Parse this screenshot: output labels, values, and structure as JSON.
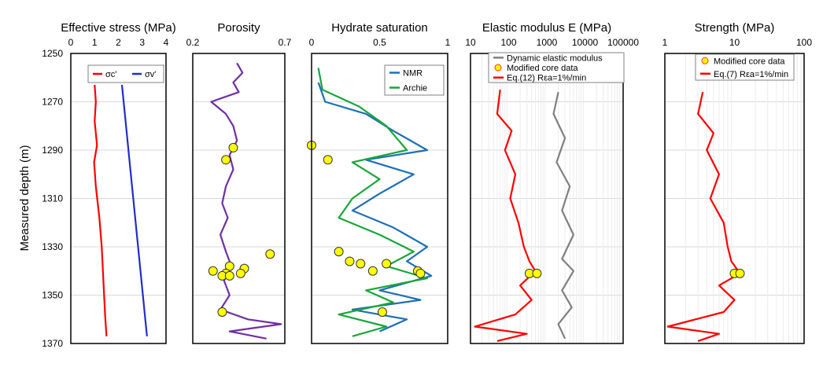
{
  "figure": {
    "ylabel": "Measured depth (m)",
    "y_ticks": [
      1250,
      1270,
      1290,
      1310,
      1330,
      1350,
      1370
    ]
  },
  "chart_data": [
    {
      "type": "line",
      "title": "Effective stress (MPa)",
      "x_scale": "linear",
      "xlim": [
        0,
        4
      ],
      "x_ticks": [
        "0",
        "1",
        "2",
        "3",
        "4"
      ],
      "ylim": [
        1250,
        1370
      ],
      "y_inverted": true,
      "legend": "top-right",
      "series": [
        {
          "name": "σc'",
          "color": "#ff0000",
          "points": [
            [
              1.0,
              1263
            ],
            [
              1.05,
              1270
            ],
            [
              1.0,
              1278
            ],
            [
              1.1,
              1288
            ],
            [
              0.98,
              1295
            ],
            [
              1.05,
              1305
            ],
            [
              1.2,
              1318
            ],
            [
              1.3,
              1330
            ],
            [
              1.35,
              1340
            ],
            [
              1.4,
              1350
            ],
            [
              1.45,
              1360
            ],
            [
              1.5,
              1367
            ]
          ]
        },
        {
          "name": "σv'",
          "color": "#1f2ecc",
          "points": [
            [
              2.15,
              1263
            ],
            [
              3.2,
              1367
            ]
          ]
        }
      ]
    },
    {
      "type": "line",
      "title": "Porosity",
      "x_scale": "linear",
      "xlim": [
        0.2,
        0.7
      ],
      "x_ticks": [
        "0.2",
        "0.7"
      ],
      "ylim": [
        1250,
        1370
      ],
      "y_inverted": true,
      "series": [
        {
          "name": "",
          "color": "#7030a0",
          "points": [
            [
              0.44,
              1254
            ],
            [
              0.47,
              1258
            ],
            [
              0.42,
              1262
            ],
            [
              0.45,
              1266
            ],
            [
              0.3,
              1270
            ],
            [
              0.38,
              1275
            ],
            [
              0.42,
              1280
            ],
            [
              0.44,
              1286
            ],
            [
              0.4,
              1292
            ],
            [
              0.42,
              1298
            ],
            [
              0.38,
              1305
            ],
            [
              0.36,
              1312
            ],
            [
              0.39,
              1318
            ],
            [
              0.35,
              1325
            ],
            [
              0.38,
              1332
            ],
            [
              0.41,
              1338
            ],
            [
              0.37,
              1344
            ],
            [
              0.4,
              1350
            ],
            [
              0.35,
              1356
            ],
            [
              0.5,
              1360
            ],
            [
              0.68,
              1362
            ],
            [
              0.4,
              1365
            ],
            [
              0.6,
              1368
            ]
          ]
        }
      ],
      "markers": {
        "name": "",
        "color": "#ffff00",
        "points": [
          [
            0.42,
            1289
          ],
          [
            0.38,
            1294
          ],
          [
            0.62,
            1333
          ],
          [
            0.4,
            1338
          ],
          [
            0.48,
            1339
          ],
          [
            0.31,
            1340
          ],
          [
            0.38,
            1341
          ],
          [
            0.46,
            1341
          ],
          [
            0.36,
            1342
          ],
          [
            0.4,
            1342
          ],
          [
            0.36,
            1357
          ]
        ]
      }
    },
    {
      "type": "line",
      "title": "Hydrate saturation",
      "x_scale": "linear",
      "xlim": [
        0,
        1
      ],
      "x_ticks": [
        "0",
        "0.5",
        "1"
      ],
      "ylim": [
        1250,
        1370
      ],
      "y_inverted": true,
      "legend": "top-right",
      "series": [
        {
          "name": "NMR",
          "color": "#1f6fb5",
          "points": [
            [
              0.05,
              1262
            ],
            [
              0.1,
              1270
            ],
            [
              0.4,
              1275
            ],
            [
              0.6,
              1282
            ],
            [
              0.85,
              1290
            ],
            [
              0.4,
              1294
            ],
            [
              0.75,
              1300
            ],
            [
              0.5,
              1308
            ],
            [
              0.3,
              1315
            ],
            [
              0.6,
              1322
            ],
            [
              0.85,
              1330
            ],
            [
              0.7,
              1336
            ],
            [
              0.88,
              1342
            ],
            [
              0.5,
              1348
            ],
            [
              0.8,
              1352
            ],
            [
              0.3,
              1356
            ],
            [
              0.7,
              1360
            ],
            [
              0.5,
              1365
            ]
          ]
        },
        {
          "name": "Archie",
          "color": "#19a63a",
          "points": [
            [
              0.05,
              1256
            ],
            [
              0.08,
              1265
            ],
            [
              0.35,
              1272
            ],
            [
              0.55,
              1280
            ],
            [
              0.7,
              1290
            ],
            [
              0.3,
              1295
            ],
            [
              0.5,
              1302
            ],
            [
              0.3,
              1310
            ],
            [
              0.2,
              1318
            ],
            [
              0.5,
              1325
            ],
            [
              0.75,
              1332
            ],
            [
              0.55,
              1338
            ],
            [
              0.85,
              1343
            ],
            [
              0.4,
              1348
            ],
            [
              0.6,
              1353
            ],
            [
              0.2,
              1358
            ],
            [
              0.55,
              1363
            ],
            [
              0.3,
              1367
            ]
          ]
        }
      ],
      "markers": {
        "name": "",
        "color": "#ffff00",
        "points": [
          [
            0.0,
            1288
          ],
          [
            0.12,
            1294
          ],
          [
            0.2,
            1332
          ],
          [
            0.28,
            1336
          ],
          [
            0.36,
            1337
          ],
          [
            0.55,
            1337
          ],
          [
            0.45,
            1340
          ],
          [
            0.78,
            1340
          ],
          [
            0.8,
            1341
          ],
          [
            0.52,
            1357
          ]
        ]
      }
    },
    {
      "type": "line",
      "title": "Elastic modulus E (MPa)",
      "x_scale": "log",
      "xlim": [
        10,
        100000
      ],
      "x_ticks": [
        "10",
        "100",
        "1000",
        "10000",
        "100000"
      ],
      "ylim": [
        1250,
        1370
      ],
      "y_inverted": true,
      "legend": "top",
      "series": [
        {
          "name": "Dynamic elastic modulus",
          "color": "#808080",
          "points": [
            [
              2000,
              1266
            ],
            [
              1500,
              1275
            ],
            [
              3000,
              1285
            ],
            [
              1800,
              1295
            ],
            [
              4000,
              1305
            ],
            [
              2500,
              1315
            ],
            [
              5000,
              1325
            ],
            [
              2500,
              1335
            ],
            [
              5000,
              1340
            ],
            [
              2500,
              1348
            ],
            [
              4500,
              1355
            ],
            [
              2000,
              1362
            ],
            [
              3000,
              1368
            ]
          ]
        },
        {
          "name": "Eq.(12) Rεa=1%/min",
          "color": "#ff0000",
          "points": [
            [
              60,
              1265
            ],
            [
              50,
              1275
            ],
            [
              120,
              1282
            ],
            [
              80,
              1290
            ],
            [
              150,
              1300
            ],
            [
              110,
              1310
            ],
            [
              180,
              1320
            ],
            [
              250,
              1330
            ],
            [
              350,
              1336
            ],
            [
              500,
              1340
            ],
            [
              200,
              1346
            ],
            [
              400,
              1352
            ],
            [
              150,
              1358
            ],
            [
              13,
              1363
            ],
            [
              300,
              1366
            ],
            [
              50,
              1369
            ]
          ]
        }
      ],
      "markers": {
        "name": "Modified core data",
        "color": "#ffff00",
        "points": [
          [
            350,
            1341
          ],
          [
            550,
            1341
          ]
        ]
      }
    },
    {
      "type": "line",
      "title": "Strength (MPa)",
      "x_scale": "log",
      "xlim": [
        1,
        100
      ],
      "x_ticks": [
        "1",
        "10",
        "100"
      ],
      "ylim": [
        1250,
        1370
      ],
      "y_inverted": true,
      "legend": "top-right",
      "series": [
        {
          "name": "Eq.(7) Rεa=1%/min",
          "color": "#ff0000",
          "points": [
            [
              3.5,
              1266
            ],
            [
              3.0,
              1275
            ],
            [
              5.0,
              1283
            ],
            [
              4.0,
              1290
            ],
            [
              6.0,
              1300
            ],
            [
              4.5,
              1310
            ],
            [
              7.0,
              1320
            ],
            [
              8.0,
              1330
            ],
            [
              9.0,
              1336
            ],
            [
              12.0,
              1341
            ],
            [
              6.0,
              1346
            ],
            [
              10.0,
              1352
            ],
            [
              7.0,
              1357
            ],
            [
              1.1,
              1363
            ],
            [
              6.0,
              1366
            ],
            [
              3.0,
              1369
            ]
          ]
        }
      ],
      "markers": {
        "name": "Modified core data",
        "color": "#ffff00",
        "points": [
          [
            10,
            1341
          ],
          [
            12,
            1341
          ]
        ]
      }
    }
  ]
}
